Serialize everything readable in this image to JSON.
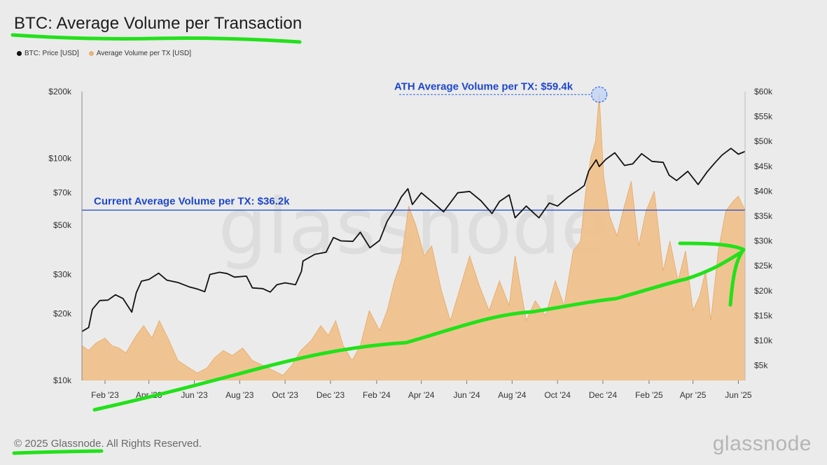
{
  "title": "BTC: Average Volume per Transaction",
  "legend": [
    {
      "label": "BTC: Price [USD]",
      "color": "#111111"
    },
    {
      "label": "Average Volume per TX [USD]",
      "color": "#e9b27d"
    }
  ],
  "footer": "© 2025 Glassnode. All Rights Reserved.",
  "brand": "glassnode",
  "colors": {
    "price_line": "#111111",
    "volume_area": "#f0c08a",
    "reference_line": "#1d47c9",
    "annotation_text": "#1d47c9",
    "highlight_stroke": "#2a62e6",
    "marker_green": "#22e11a"
  },
  "chart_data": {
    "type": "area",
    "left_axis": {
      "scale": "log",
      "label": "BTC: Price [USD]",
      "ticks": [
        10000,
        20000,
        30000,
        50000,
        70000,
        100000,
        200000
      ],
      "tick_labels": [
        "$10k",
        "$20k",
        "$30k",
        "$50k",
        "$70k",
        "$100k",
        "$200k"
      ],
      "range": [
        10000,
        200000
      ]
    },
    "right_axis": {
      "scale": "linear",
      "label": "Average Volume per TX [USD]",
      "ticks": [
        5000,
        10000,
        15000,
        20000,
        25000,
        30000,
        35000,
        40000,
        45000,
        50000,
        55000,
        60000
      ],
      "tick_labels": [
        "$5k",
        "$10k",
        "$15k",
        "$20k",
        "$25k",
        "$30k",
        "$35k",
        "$40k",
        "$45k",
        "$50k",
        "$55k",
        "$60k"
      ],
      "range": [
        2000,
        60000
      ]
    },
    "x_axis": {
      "range": [
        "2023-01-01",
        "2025-06-10"
      ],
      "ticks": [
        "2023-02-01",
        "2023-04-01",
        "2023-06-01",
        "2023-08-01",
        "2023-10-01",
        "2023-12-01",
        "2024-02-01",
        "2024-04-01",
        "2024-06-01",
        "2024-08-01",
        "2024-10-01",
        "2024-12-01",
        "2025-02-01",
        "2025-04-01",
        "2025-06-01"
      ],
      "tick_labels": [
        "Feb '23",
        "Apr '23",
        "Jun '23",
        "Aug '23",
        "Oct '23",
        "Dec '23",
        "Feb '24",
        "Apr '24",
        "Jun '24",
        "Aug '24",
        "Oct '24",
        "Dec '24",
        "Feb '25",
        "Apr '25",
        "Jun '25"
      ]
    },
    "series": [
      {
        "name": "BTC: Price [USD]",
        "axis": "left",
        "type": "line",
        "points": [
          [
            "2023-01-01",
            16600
          ],
          [
            "2023-01-10",
            17300
          ],
          [
            "2023-01-15",
            20900
          ],
          [
            "2023-01-25",
            22900
          ],
          [
            "2023-02-05",
            23000
          ],
          [
            "2023-02-15",
            24300
          ],
          [
            "2023-02-25",
            23400
          ],
          [
            "2023-03-09",
            20300
          ],
          [
            "2023-03-15",
            24800
          ],
          [
            "2023-03-22",
            28000
          ],
          [
            "2023-04-01",
            28500
          ],
          [
            "2023-04-14",
            30400
          ],
          [
            "2023-04-25",
            28300
          ],
          [
            "2023-05-10",
            27600
          ],
          [
            "2023-05-25",
            26400
          ],
          [
            "2023-06-05",
            25800
          ],
          [
            "2023-06-15",
            25100
          ],
          [
            "2023-06-22",
            30000
          ],
          [
            "2023-07-05",
            30700
          ],
          [
            "2023-07-15",
            30300
          ],
          [
            "2023-07-25",
            29200
          ],
          [
            "2023-08-10",
            29500
          ],
          [
            "2023-08-18",
            26100
          ],
          [
            "2023-09-01",
            25900
          ],
          [
            "2023-09-11",
            25000
          ],
          [
            "2023-09-20",
            27000
          ],
          [
            "2023-10-01",
            27500
          ],
          [
            "2023-10-15",
            27000
          ],
          [
            "2023-10-23",
            31000
          ],
          [
            "2023-10-25",
            34500
          ],
          [
            "2023-11-10",
            37000
          ],
          [
            "2023-11-25",
            37800
          ],
          [
            "2023-12-05",
            44000
          ],
          [
            "2023-12-15",
            42500
          ],
          [
            "2023-12-31",
            42300
          ],
          [
            "2024-01-10",
            46500
          ],
          [
            "2024-01-23",
            39600
          ],
          [
            "2024-02-05",
            42700
          ],
          [
            "2024-02-15",
            52000
          ],
          [
            "2024-02-28",
            61000
          ],
          [
            "2024-03-05",
            67000
          ],
          [
            "2024-03-14",
            73000
          ],
          [
            "2024-03-20",
            62000
          ],
          [
            "2024-04-01",
            70000
          ],
          [
            "2024-04-15",
            64000
          ],
          [
            "2024-05-01",
            57500
          ],
          [
            "2024-05-20",
            70000
          ],
          [
            "2024-06-05",
            71000
          ],
          [
            "2024-06-20",
            64500
          ],
          [
            "2024-07-05",
            56500
          ],
          [
            "2024-07-15",
            64000
          ],
          [
            "2024-07-28",
            68500
          ],
          [
            "2024-08-05",
            54000
          ],
          [
            "2024-08-20",
            61000
          ],
          [
            "2024-09-06",
            54000
          ],
          [
            "2024-09-20",
            63000
          ],
          [
            "2024-10-01",
            61000
          ],
          [
            "2024-10-15",
            67000
          ],
          [
            "2024-10-29",
            72000
          ],
          [
            "2024-11-06",
            75500
          ],
          [
            "2024-11-12",
            88000
          ],
          [
            "2024-11-22",
            98500
          ],
          [
            "2024-11-26",
            92000
          ],
          [
            "2024-12-05",
            99000
          ],
          [
            "2024-12-17",
            106000
          ],
          [
            "2024-12-30",
            93000
          ],
          [
            "2025-01-10",
            94500
          ],
          [
            "2025-01-22",
            105000
          ],
          [
            "2025-02-05",
            97000
          ],
          [
            "2025-02-20",
            96000
          ],
          [
            "2025-02-28",
            84000
          ],
          [
            "2025-03-10",
            79500
          ],
          [
            "2025-03-25",
            87500
          ],
          [
            "2025-04-08",
            76300
          ],
          [
            "2025-04-20",
            87000
          ],
          [
            "2025-05-01",
            96000
          ],
          [
            "2025-05-10",
            103500
          ],
          [
            "2025-05-22",
            111000
          ],
          [
            "2025-06-01",
            104500
          ],
          [
            "2025-06-10",
            107500
          ]
        ]
      },
      {
        "name": "Average Volume per TX [USD]",
        "axis": "right",
        "type": "area",
        "points": [
          [
            "2023-01-01",
            9000
          ],
          [
            "2023-01-10",
            8000
          ],
          [
            "2023-01-20",
            9500
          ],
          [
            "2023-02-01",
            10500
          ],
          [
            "2023-02-10",
            9000
          ],
          [
            "2023-02-20",
            8500
          ],
          [
            "2023-03-01",
            7500
          ],
          [
            "2023-03-15",
            11000
          ],
          [
            "2023-03-25",
            13000
          ],
          [
            "2023-04-05",
            10500
          ],
          [
            "2023-04-15",
            14000
          ],
          [
            "2023-04-28",
            10000
          ],
          [
            "2023-05-10",
            6000
          ],
          [
            "2023-05-25",
            4500
          ],
          [
            "2023-06-05",
            3500
          ],
          [
            "2023-06-18",
            4500
          ],
          [
            "2023-06-28",
            6500
          ],
          [
            "2023-07-10",
            8000
          ],
          [
            "2023-07-22",
            7000
          ],
          [
            "2023-08-05",
            8500
          ],
          [
            "2023-08-18",
            6000
          ],
          [
            "2023-09-01",
            5000
          ],
          [
            "2023-09-15",
            4000
          ],
          [
            "2023-09-28",
            3000
          ],
          [
            "2023-10-10",
            5000
          ],
          [
            "2023-10-22",
            8000
          ],
          [
            "2023-11-05",
            10000
          ],
          [
            "2023-11-18",
            13000
          ],
          [
            "2023-11-28",
            11000
          ],
          [
            "2023-12-08",
            14000
          ],
          [
            "2023-12-18",
            9000
          ],
          [
            "2023-12-30",
            6000
          ],
          [
            "2024-01-10",
            9000
          ],
          [
            "2024-01-22",
            16000
          ],
          [
            "2024-02-05",
            12000
          ],
          [
            "2024-02-15",
            16000
          ],
          [
            "2024-02-25",
            22000
          ],
          [
            "2024-03-05",
            26000
          ],
          [
            "2024-03-15",
            37000
          ],
          [
            "2024-03-25",
            33000
          ],
          [
            "2024-04-05",
            27000
          ],
          [
            "2024-04-15",
            29000
          ],
          [
            "2024-04-28",
            20000
          ],
          [
            "2024-05-10",
            14000
          ],
          [
            "2024-05-22",
            20000
          ],
          [
            "2024-06-05",
            27000
          ],
          [
            "2024-06-18",
            21000
          ],
          [
            "2024-07-01",
            16000
          ],
          [
            "2024-07-15",
            22000
          ],
          [
            "2024-07-28",
            17000
          ],
          [
            "2024-08-05",
            27000
          ],
          [
            "2024-08-20",
            14000
          ],
          [
            "2024-09-01",
            18000
          ],
          [
            "2024-09-15",
            15000
          ],
          [
            "2024-09-28",
            22000
          ],
          [
            "2024-10-10",
            17000
          ],
          [
            "2024-10-22",
            28000
          ],
          [
            "2024-11-01",
            30000
          ],
          [
            "2024-11-08",
            40000
          ],
          [
            "2024-11-15",
            47000
          ],
          [
            "2024-11-21",
            50000
          ],
          [
            "2024-11-26",
            59400
          ],
          [
            "2024-12-02",
            43000
          ],
          [
            "2024-12-10",
            35000
          ],
          [
            "2024-12-20",
            31000
          ],
          [
            "2024-12-28",
            36000
          ],
          [
            "2025-01-08",
            42000
          ],
          [
            "2025-01-18",
            29000
          ],
          [
            "2025-01-28",
            36000
          ],
          [
            "2025-02-08",
            40000
          ],
          [
            "2025-02-20",
            24000
          ],
          [
            "2025-03-01",
            30000
          ],
          [
            "2025-03-12",
            22000
          ],
          [
            "2025-03-22",
            28000
          ],
          [
            "2025-04-01",
            16000
          ],
          [
            "2025-04-10",
            19000
          ],
          [
            "2025-04-18",
            24000
          ],
          [
            "2025-04-25",
            14000
          ],
          [
            "2025-05-05",
            28000
          ],
          [
            "2025-05-15",
            36000
          ],
          [
            "2025-05-25",
            38000
          ],
          [
            "2025-06-01",
            39000
          ],
          [
            "2025-06-10",
            36200
          ]
        ]
      }
    ],
    "annotations": {
      "current_line": {
        "value": 36200,
        "axis": "right",
        "label": "Current Average Volume per TX: $36.2k"
      },
      "ath": {
        "date": "2024-11-26",
        "value": 59400,
        "label": "ATH Average Volume per TX: $59.4k"
      }
    }
  }
}
